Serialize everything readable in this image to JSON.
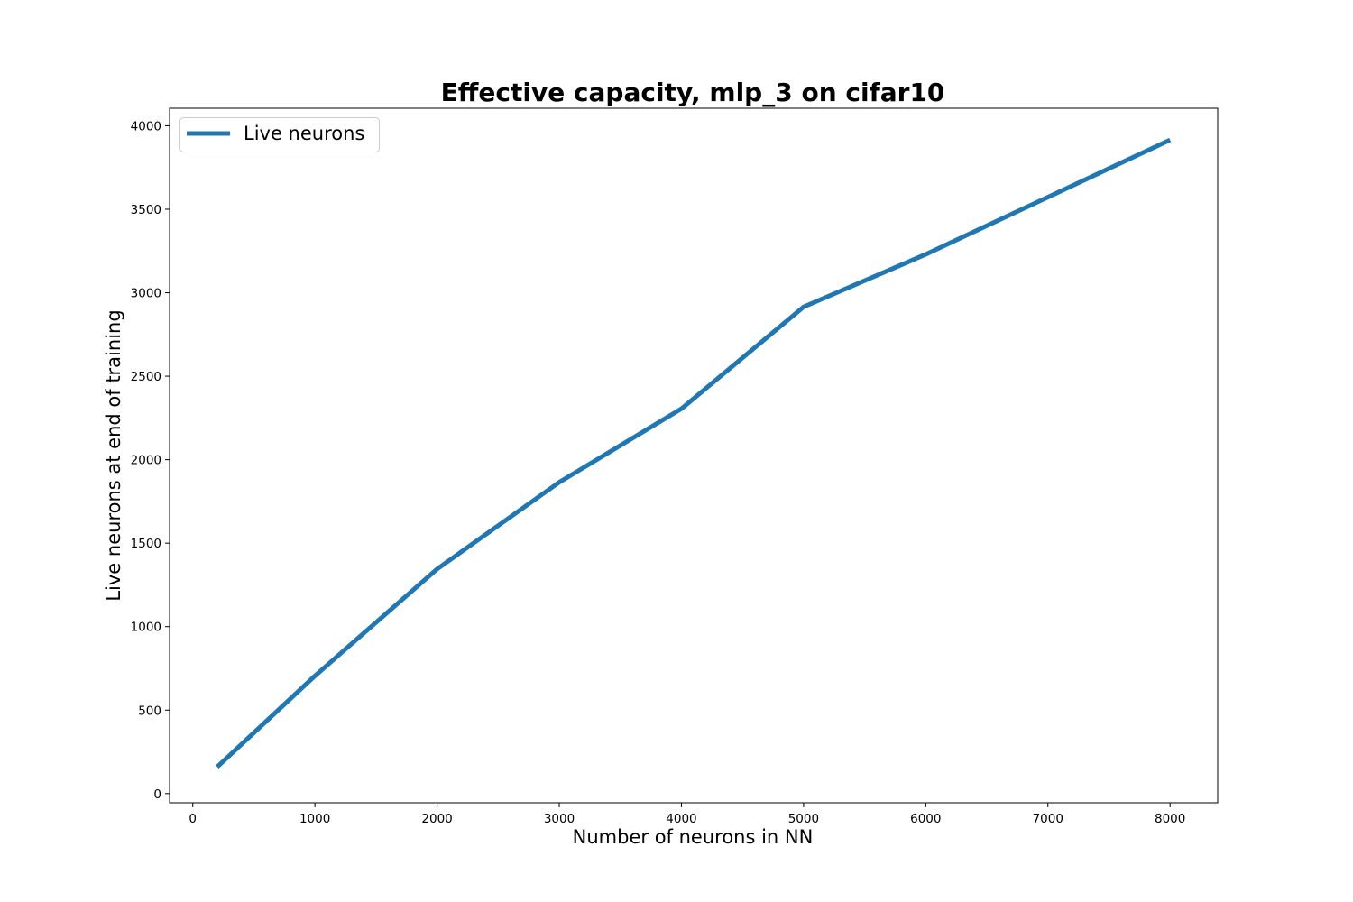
{
  "chart_data": {
    "type": "line",
    "title": "Effective capacity, mlp_3 on cifar10",
    "xlabel": "Number of neurons in NN",
    "ylabel": "Live neurons at end of training",
    "xlim": [
      -190,
      8390
    ],
    "ylim": [
      -55,
      4105
    ],
    "xticks": [
      0,
      1000,
      2000,
      3000,
      4000,
      5000,
      6000,
      7000,
      8000
    ],
    "yticks": [
      0,
      500,
      1000,
      1500,
      2000,
      2500,
      3000,
      3500,
      4000
    ],
    "xtick_labels": [
      "0",
      "1000",
      "2000",
      "3000",
      "4000",
      "5000",
      "6000",
      "7000",
      "8000"
    ],
    "ytick_labels": [
      "0",
      "500",
      "1000",
      "1500",
      "2000",
      "2500",
      "3000",
      "3500",
      "4000"
    ],
    "grid": false,
    "legend_position": "top-left",
    "series": [
      {
        "name": "Live neurons",
        "color": "#1f77b4",
        "x": [
          200,
          1000,
          2000,
          3000,
          4000,
          5000,
          6000,
          8000
        ],
        "y": [
          160,
          705,
          1345,
          1865,
          2305,
          2915,
          3230,
          3915
        ]
      }
    ]
  }
}
